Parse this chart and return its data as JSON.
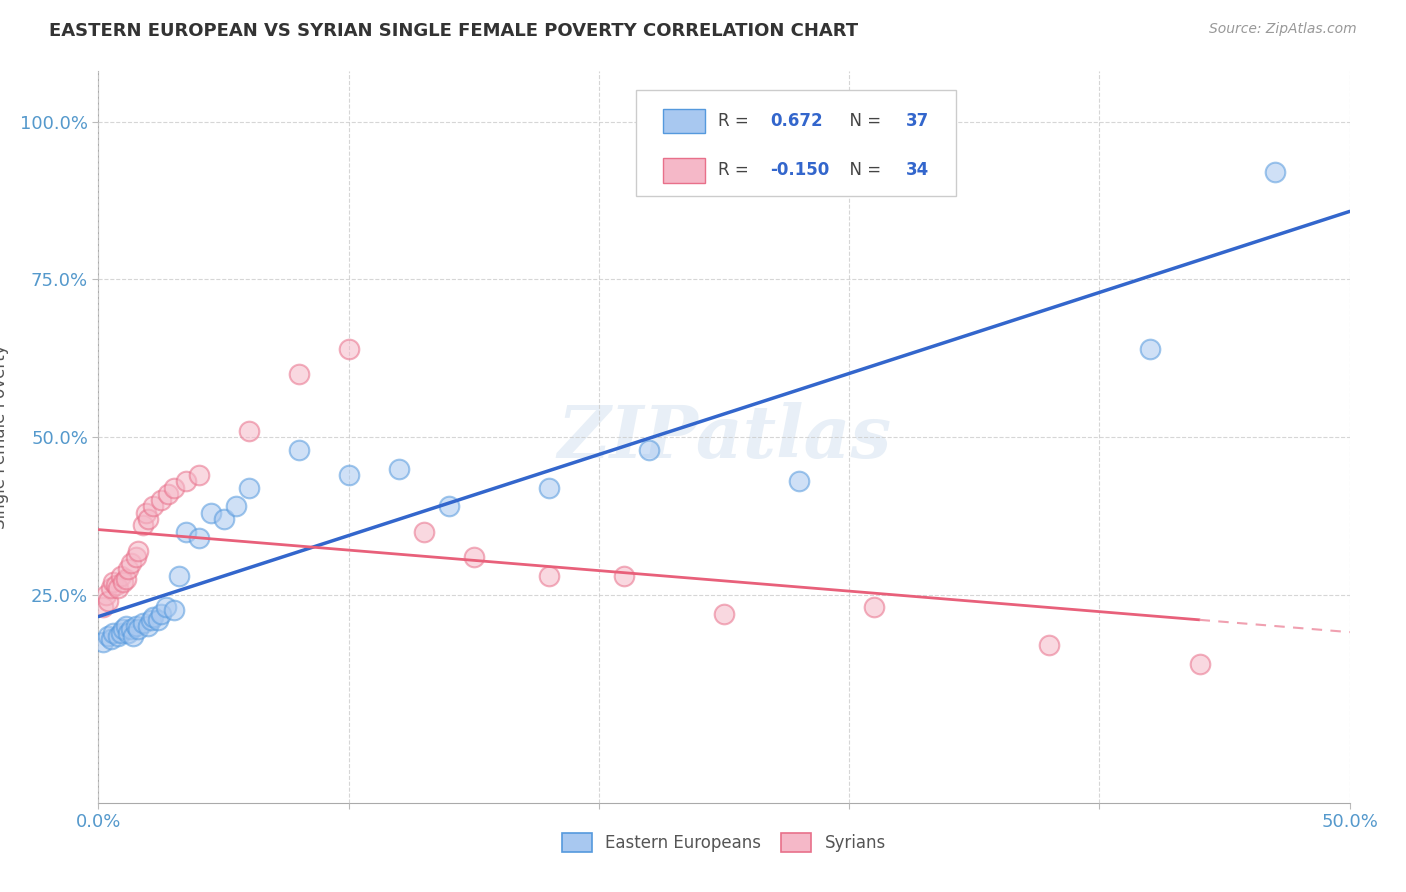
{
  "title": "EASTERN EUROPEAN VS SYRIAN SINGLE FEMALE POVERTY CORRELATION CHART",
  "source": "Source: ZipAtlas.com",
  "ylabel": "Single Female Poverty",
  "xlim": [
    0.0,
    0.5
  ],
  "ylim": [
    -0.08,
    1.08
  ],
  "legend_R_ee": "0.672",
  "legend_N_ee": "37",
  "legend_R_sy": "-0.150",
  "legend_N_sy": "34",
  "color_ee_fill": "#A8C8F0",
  "color_ee_edge": "#5599DD",
  "color_sy_fill": "#F5B8C8",
  "color_sy_edge": "#E8708A",
  "color_ee_line": "#3366CC",
  "color_sy_line_solid": "#E8607A",
  "color_sy_line_dash": "#F0A0B0",
  "watermark": "ZIPatlas",
  "background_color": "#FFFFFF",
  "ee_x": [
    0.002,
    0.004,
    0.005,
    0.006,
    0.008,
    0.009,
    0.01,
    0.011,
    0.012,
    0.013,
    0.014,
    0.015,
    0.016,
    0.018,
    0.02,
    0.021,
    0.022,
    0.024,
    0.025,
    0.027,
    0.03,
    0.032,
    0.035,
    0.04,
    0.045,
    0.05,
    0.055,
    0.06,
    0.08,
    0.1,
    0.12,
    0.14,
    0.18,
    0.22,
    0.28,
    0.42,
    0.47
  ],
  "ee_y": [
    0.175,
    0.185,
    0.18,
    0.19,
    0.185,
    0.19,
    0.195,
    0.2,
    0.19,
    0.195,
    0.185,
    0.2,
    0.195,
    0.205,
    0.2,
    0.21,
    0.215,
    0.21,
    0.22,
    0.23,
    0.225,
    0.28,
    0.35,
    0.34,
    0.38,
    0.37,
    0.39,
    0.42,
    0.48,
    0.44,
    0.45,
    0.39,
    0.42,
    0.48,
    0.43,
    0.64,
    0.92
  ],
  "sy_x": [
    0.002,
    0.003,
    0.004,
    0.005,
    0.006,
    0.007,
    0.008,
    0.009,
    0.01,
    0.011,
    0.012,
    0.013,
    0.015,
    0.016,
    0.018,
    0.019,
    0.02,
    0.022,
    0.025,
    0.028,
    0.03,
    0.035,
    0.04,
    0.06,
    0.08,
    0.1,
    0.13,
    0.15,
    0.18,
    0.21,
    0.25,
    0.31,
    0.38,
    0.44
  ],
  "sy_y": [
    0.23,
    0.25,
    0.24,
    0.26,
    0.27,
    0.265,
    0.26,
    0.28,
    0.27,
    0.275,
    0.29,
    0.3,
    0.31,
    0.32,
    0.36,
    0.38,
    0.37,
    0.39,
    0.4,
    0.41,
    0.42,
    0.43,
    0.44,
    0.51,
    0.6,
    0.64,
    0.35,
    0.31,
    0.28,
    0.28,
    0.22,
    0.23,
    0.17,
    0.14
  ]
}
